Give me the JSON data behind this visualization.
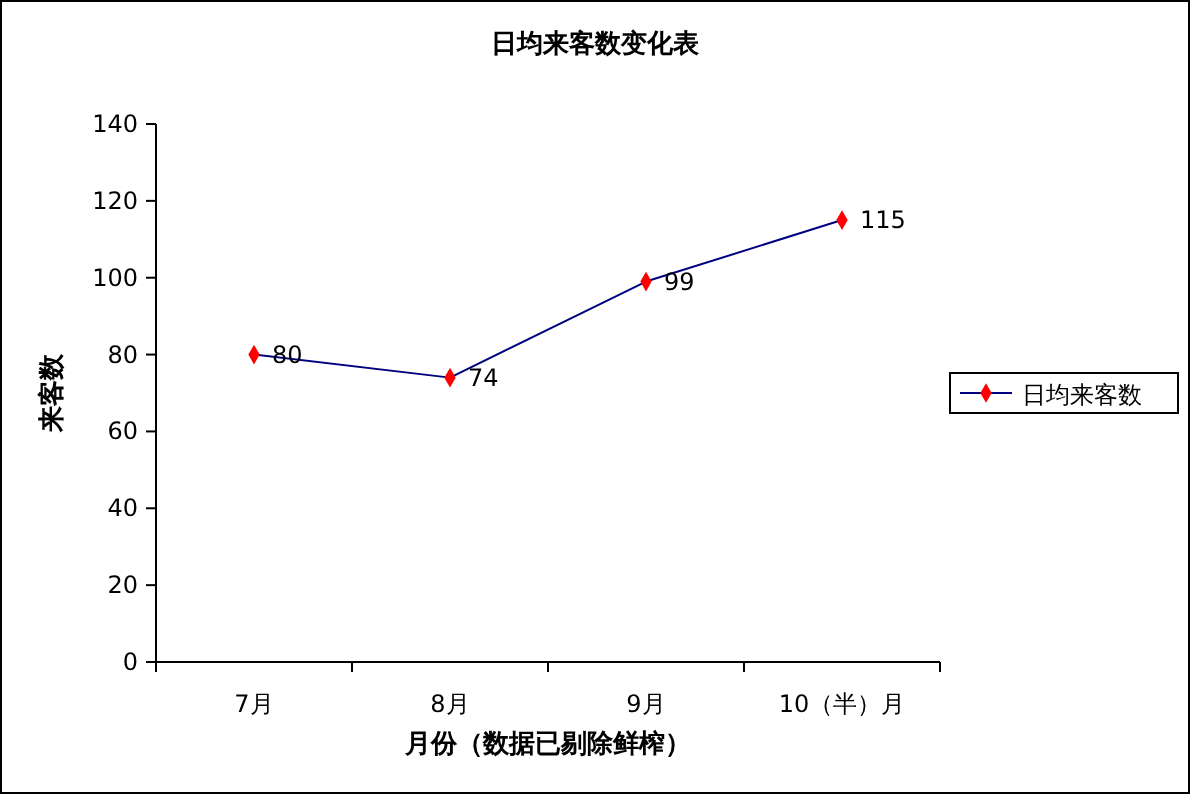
{
  "chart_data": {
    "type": "line",
    "title": "日均来客数变化表",
    "xlabel": "月份（数据已剔除鲜榨）",
    "ylabel": "来客数",
    "categories": [
      "7月",
      "8月",
      "9月",
      "10（半）月"
    ],
    "series": [
      {
        "name": "日均来客数",
        "color": "#000080",
        "colors": [
          "#ff0000",
          "#ff0000",
          "#ff0000",
          "#ff0000"
        ],
        "values": [
          80,
          74,
          99,
          115
        ]
      }
    ],
    "ylim": [
      0,
      140
    ],
    "yticks": [
      0,
      20,
      40,
      60,
      80,
      100,
      120,
      140
    ],
    "data_labels": true,
    "marker": "diamond",
    "legend": "right",
    "grid": false
  }
}
